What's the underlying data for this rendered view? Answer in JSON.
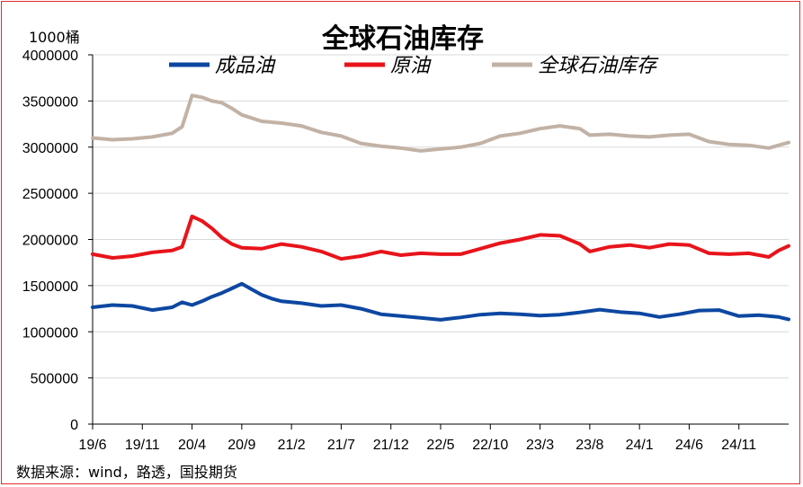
{
  "chart_data": {
    "type": "line",
    "title": "全球石油库存",
    "unit_label": "1000桶",
    "source": "数据来源：wind，路透，国投期货",
    "ylim": [
      0,
      4000000
    ],
    "y_ticks": [
      "0",
      "500000",
      "1000000",
      "1500000",
      "2000000",
      "2500000",
      "3000000",
      "3500000",
      "4000000"
    ],
    "x_ticks": [
      "19/6",
      "19/11",
      "20/4",
      "20/9",
      "21/2",
      "21/7",
      "21/12",
      "22/5",
      "22/10",
      "23/3",
      "23/8",
      "24/1",
      "24/6",
      "24/11"
    ],
    "legend_position": "top",
    "grid": "horizontal",
    "series": [
      {
        "name": "成品油",
        "color": "#0d47a1",
        "points": [
          [
            "19/6",
            1265000
          ],
          [
            "19/8",
            1290000
          ],
          [
            "19/10",
            1280000
          ],
          [
            "19/12",
            1235000
          ],
          [
            "20/2",
            1265000
          ],
          [
            "20/3",
            1320000
          ],
          [
            "20/4",
            1290000
          ],
          [
            "20/5",
            1330000
          ],
          [
            "20/6",
            1380000
          ],
          [
            "20/7",
            1420000
          ],
          [
            "20/8",
            1470000
          ],
          [
            "20/9",
            1520000
          ],
          [
            "20/10",
            1460000
          ],
          [
            "20/11",
            1400000
          ],
          [
            "20/12",
            1360000
          ],
          [
            "21/1",
            1330000
          ],
          [
            "21/3",
            1310000
          ],
          [
            "21/5",
            1280000
          ],
          [
            "21/7",
            1290000
          ],
          [
            "21/9",
            1250000
          ],
          [
            "21/11",
            1190000
          ],
          [
            "22/1",
            1170000
          ],
          [
            "22/3",
            1150000
          ],
          [
            "22/5",
            1130000
          ],
          [
            "22/7",
            1155000
          ],
          [
            "22/9",
            1185000
          ],
          [
            "22/11",
            1200000
          ],
          [
            "23/1",
            1190000
          ],
          [
            "23/3",
            1175000
          ],
          [
            "23/5",
            1185000
          ],
          [
            "23/7",
            1210000
          ],
          [
            "23/9",
            1240000
          ],
          [
            "23/11",
            1215000
          ],
          [
            "24/1",
            1200000
          ],
          [
            "24/3",
            1160000
          ],
          [
            "24/5",
            1190000
          ],
          [
            "24/7",
            1230000
          ],
          [
            "24/9",
            1235000
          ],
          [
            "24/11",
            1170000
          ],
          [
            "25/1",
            1180000
          ],
          [
            "25/3",
            1160000
          ],
          [
            "25/4",
            1135000
          ]
        ]
      },
      {
        "name": "原油",
        "color": "#e8141b",
        "points": [
          [
            "19/6",
            1840000
          ],
          [
            "19/8",
            1800000
          ],
          [
            "19/10",
            1820000
          ],
          [
            "19/12",
            1860000
          ],
          [
            "20/2",
            1880000
          ],
          [
            "20/3",
            1920000
          ],
          [
            "20/4",
            2250000
          ],
          [
            "20/5",
            2200000
          ],
          [
            "20/6",
            2120000
          ],
          [
            "20/7",
            2020000
          ],
          [
            "20/8",
            1950000
          ],
          [
            "20/9",
            1910000
          ],
          [
            "20/11",
            1900000
          ],
          [
            "21/1",
            1950000
          ],
          [
            "21/3",
            1920000
          ],
          [
            "21/5",
            1870000
          ],
          [
            "21/7",
            1790000
          ],
          [
            "21/9",
            1820000
          ],
          [
            "21/11",
            1870000
          ],
          [
            "22/1",
            1830000
          ],
          [
            "22/3",
            1850000
          ],
          [
            "22/5",
            1840000
          ],
          [
            "22/7",
            1840000
          ],
          [
            "22/9",
            1900000
          ],
          [
            "22/11",
            1960000
          ],
          [
            "23/1",
            2000000
          ],
          [
            "23/3",
            2050000
          ],
          [
            "23/5",
            2040000
          ],
          [
            "23/7",
            1950000
          ],
          [
            "23/8",
            1870000
          ],
          [
            "23/10",
            1920000
          ],
          [
            "23/12",
            1940000
          ],
          [
            "24/2",
            1910000
          ],
          [
            "24/4",
            1950000
          ],
          [
            "24/6",
            1940000
          ],
          [
            "24/8",
            1850000
          ],
          [
            "24/10",
            1840000
          ],
          [
            "24/12",
            1850000
          ],
          [
            "25/2",
            1810000
          ],
          [
            "25/3",
            1880000
          ],
          [
            "25/4",
            1930000
          ]
        ]
      },
      {
        "name": "全球石油库存",
        "color": "#c2b2a6",
        "points": [
          [
            "19/6",
            3100000
          ],
          [
            "19/8",
            3080000
          ],
          [
            "19/10",
            3090000
          ],
          [
            "19/12",
            3110000
          ],
          [
            "20/2",
            3150000
          ],
          [
            "20/3",
            3220000
          ],
          [
            "20/4",
            3560000
          ],
          [
            "20/5",
            3540000
          ],
          [
            "20/6",
            3500000
          ],
          [
            "20/7",
            3480000
          ],
          [
            "20/8",
            3420000
          ],
          [
            "20/9",
            3350000
          ],
          [
            "20/11",
            3280000
          ],
          [
            "21/1",
            3260000
          ],
          [
            "21/3",
            3230000
          ],
          [
            "21/5",
            3160000
          ],
          [
            "21/7",
            3120000
          ],
          [
            "21/9",
            3040000
          ],
          [
            "21/11",
            3010000
          ],
          [
            "22/1",
            2990000
          ],
          [
            "22/3",
            2960000
          ],
          [
            "22/5",
            2980000
          ],
          [
            "22/7",
            3000000
          ],
          [
            "22/9",
            3040000
          ],
          [
            "22/11",
            3120000
          ],
          [
            "23/1",
            3150000
          ],
          [
            "23/3",
            3200000
          ],
          [
            "23/5",
            3230000
          ],
          [
            "23/7",
            3200000
          ],
          [
            "23/8",
            3130000
          ],
          [
            "23/10",
            3140000
          ],
          [
            "23/12",
            3120000
          ],
          [
            "24/2",
            3110000
          ],
          [
            "24/4",
            3130000
          ],
          [
            "24/6",
            3140000
          ],
          [
            "24/8",
            3060000
          ],
          [
            "24/10",
            3030000
          ],
          [
            "24/12",
            3020000
          ],
          [
            "25/2",
            2990000
          ],
          [
            "25/3",
            3020000
          ],
          [
            "25/4",
            3050000
          ]
        ]
      }
    ]
  }
}
